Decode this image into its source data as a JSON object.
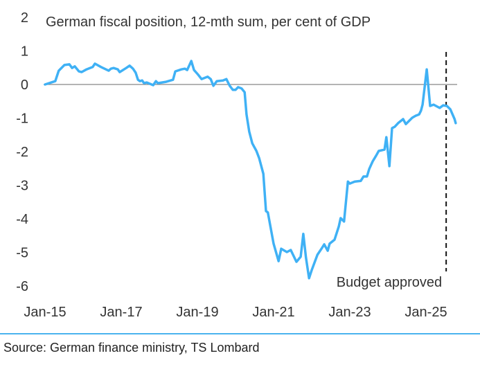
{
  "chart_data": {
    "type": "line",
    "title": "German fiscal position, 12-mth sum, per cent of GDP",
    "xlabel": "",
    "ylabel": "",
    "ylim": [
      -6,
      2
    ],
    "yticks": [
      2,
      1,
      0,
      -1,
      -2,
      -3,
      -4,
      -5,
      -6
    ],
    "xlim": [
      2015,
      2026
    ],
    "xticks": [
      {
        "x": 2015,
        "label": "Jan-15"
      },
      {
        "x": 2017,
        "label": "Jan-17"
      },
      {
        "x": 2019,
        "label": "Jan-19"
      },
      {
        "x": 2021,
        "label": "Jan-21"
      },
      {
        "x": 2023,
        "label": "Jan-23"
      },
      {
        "x": 2025,
        "label": "Jan-25"
      }
    ],
    "grid": false,
    "line_color": "#3fb1f5",
    "annotation": {
      "x": 2025.53,
      "label": "Budget approved",
      "style": "dashed-vertical"
    },
    "series": [
      {
        "name": "German fiscal position",
        "x": [
          2015.0,
          2015.22,
          2015.27,
          2015.36,
          2015.51,
          2015.64,
          2015.71,
          2015.78,
          2015.89,
          2015.96,
          2016.09,
          2016.25,
          2016.31,
          2016.47,
          2016.67,
          2016.73,
          2016.8,
          2016.91,
          2016.96,
          2017.13,
          2017.22,
          2017.31,
          2017.38,
          2017.44,
          2017.49,
          2017.55,
          2017.6,
          2017.67,
          2017.84,
          2017.91,
          2017.96,
          2018.18,
          2018.36,
          2018.42,
          2018.58,
          2018.67,
          2018.73,
          2018.84,
          2018.91,
          2019.02,
          2019.11,
          2019.27,
          2019.35,
          2019.42,
          2019.51,
          2019.67,
          2019.76,
          2019.85,
          2019.93,
          2020.0,
          2020.07,
          2020.16,
          2020.24,
          2020.29,
          2020.36,
          2020.44,
          2020.55,
          2020.62,
          2020.73,
          2020.8,
          2020.85,
          2021.0,
          2021.13,
          2021.2,
          2021.35,
          2021.45,
          2021.6,
          2021.71,
          2021.78,
          2021.85,
          2021.93,
          2022.0,
          2022.15,
          2022.27,
          2022.33,
          2022.42,
          2022.47,
          2022.6,
          2022.71,
          2022.76,
          2022.85,
          2022.95,
          2023.0,
          2023.13,
          2023.29,
          2023.36,
          2023.45,
          2023.51,
          2023.6,
          2023.69,
          2023.76,
          2023.91,
          2023.96,
          2024.04,
          2024.11,
          2024.18,
          2024.27,
          2024.4,
          2024.47,
          2024.64,
          2024.73,
          2024.82,
          2024.87,
          2024.91,
          2025.02,
          2025.11,
          2025.2,
          2025.36,
          2025.45,
          2025.55,
          2025.64,
          2025.75,
          2025.78
        ],
        "values": [
          0.0,
          0.08,
          0.1,
          0.41,
          0.58,
          0.6,
          0.49,
          0.54,
          0.39,
          0.37,
          0.45,
          0.52,
          0.62,
          0.52,
          0.41,
          0.47,
          0.49,
          0.45,
          0.37,
          0.49,
          0.56,
          0.47,
          0.35,
          0.14,
          0.1,
          0.12,
          0.04,
          0.06,
          -0.02,
          0.1,
          0.04,
          0.08,
          0.14,
          0.39,
          0.45,
          0.47,
          0.43,
          0.7,
          0.43,
          0.29,
          0.16,
          0.23,
          0.16,
          -0.04,
          0.1,
          0.12,
          0.16,
          -0.04,
          -0.16,
          -0.16,
          -0.08,
          -0.12,
          -0.23,
          -0.89,
          -1.4,
          -1.75,
          -1.98,
          -2.19,
          -2.66,
          -3.77,
          -3.81,
          -4.74,
          -5.26,
          -4.89,
          -4.99,
          -4.93,
          -5.28,
          -5.13,
          -4.45,
          -5.15,
          -5.77,
          -5.53,
          -5.07,
          -4.87,
          -4.76,
          -4.95,
          -4.74,
          -4.62,
          -4.23,
          -3.98,
          -4.08,
          -2.89,
          -2.95,
          -2.89,
          -2.87,
          -2.74,
          -2.74,
          -2.52,
          -2.29,
          -2.12,
          -1.98,
          -1.94,
          -1.57,
          -2.43,
          -1.3,
          -1.26,
          -1.15,
          -1.03,
          -1.18,
          -0.99,
          -0.93,
          -0.89,
          -0.78,
          -0.6,
          0.45,
          -0.64,
          -0.6,
          -0.7,
          -0.62,
          -0.64,
          -0.74,
          -1.03,
          -1.15
        ]
      }
    ]
  },
  "footer": {
    "source": "Source: German finance ministry, TS Lombard"
  }
}
